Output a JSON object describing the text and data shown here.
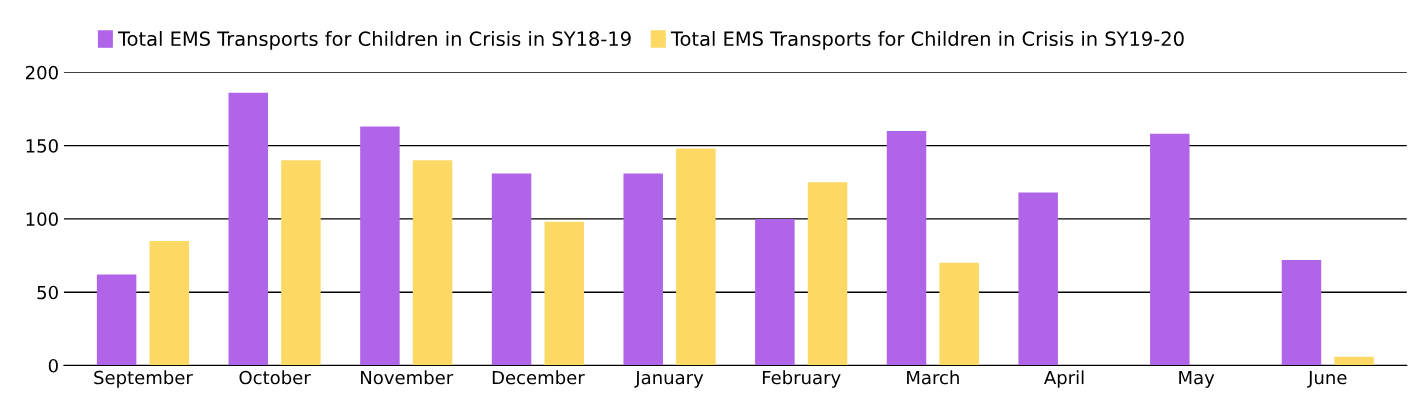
{
  "chart_data": {
    "type": "bar",
    "categories": [
      "September",
      "October",
      "November",
      "December",
      "January",
      "February",
      "March",
      "April",
      "May",
      "June"
    ],
    "series": [
      {
        "name": "Total EMS Transports for Children in Crisis in SY18-19",
        "color": "#b065e8",
        "values": [
          62,
          186,
          163,
          131,
          131,
          100,
          160,
          118,
          158,
          72
        ]
      },
      {
        "name": "Total EMS Transports for Children in Crisis in SY19-20",
        "color": "#fcd965",
        "values": [
          85,
          140,
          140,
          98,
          148,
          125,
          70,
          null,
          null,
          6
        ]
      }
    ],
    "ylim": [
      0,
      200
    ],
    "yticks": [
      0,
      50,
      100,
      150,
      200
    ],
    "grid": "y",
    "legend": "top"
  }
}
